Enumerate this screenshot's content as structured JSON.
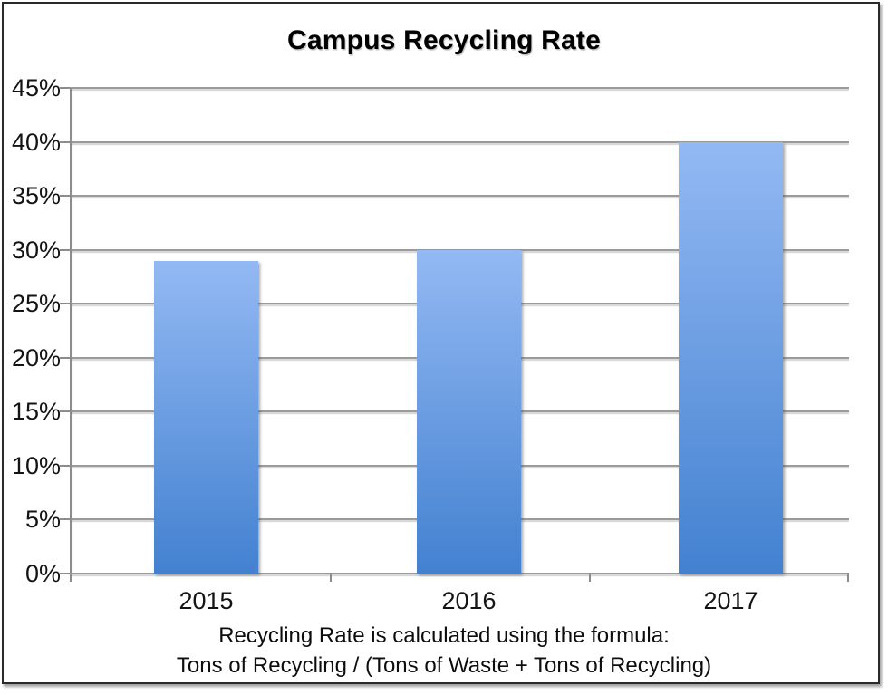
{
  "chart_data": {
    "type": "bar",
    "title": "Campus Recycling Rate",
    "categories": [
      "2015",
      "2016",
      "2017"
    ],
    "values": [
      29,
      30,
      40
    ],
    "value_unit": "%",
    "ylim": [
      0,
      45
    ],
    "ytick_step": 5,
    "yticks": [
      {
        "value": 0,
        "label": "0%"
      },
      {
        "value": 5,
        "label": "5%"
      },
      {
        "value": 10,
        "label": "10%"
      },
      {
        "value": 15,
        "label": "15%"
      },
      {
        "value": 20,
        "label": "20%"
      },
      {
        "value": 25,
        "label": "25%"
      },
      {
        "value": 30,
        "label": "30%"
      },
      {
        "value": 35,
        "label": "35%"
      },
      {
        "value": 40,
        "label": "40%"
      },
      {
        "value": 45,
        "label": "45%"
      }
    ],
    "xlabel": "",
    "ylabel": "",
    "grid": true,
    "legend": "none",
    "caption_line1": "Recycling Rate is calculated using the formula:",
    "caption_line2": "Tons of Recycling / (Tons of Waste + Tons of Recycling)",
    "colors": {
      "bar_gradient_top": "#93b9f3",
      "bar_gradient_bottom": "#4381d0",
      "gridline": "#9b9b9b",
      "axis": "#8c8c8c",
      "border": "#2a2a2a",
      "text": "#111111",
      "background": "#ffffff"
    }
  }
}
